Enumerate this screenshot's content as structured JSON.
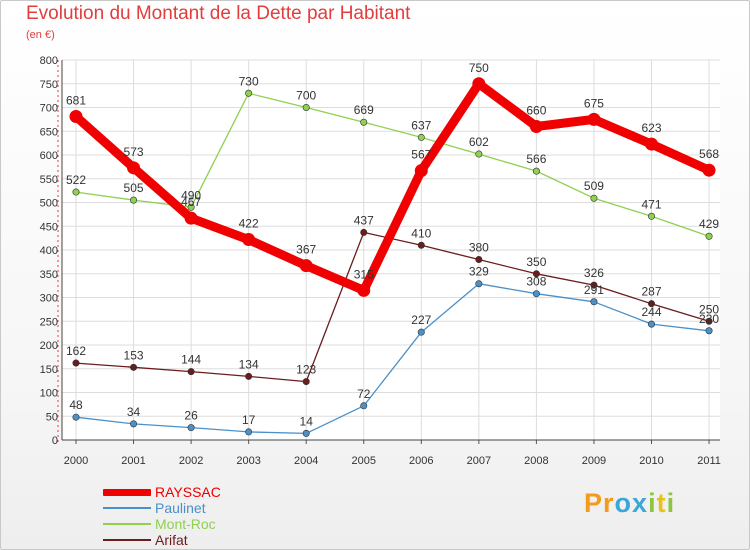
{
  "chart_data": {
    "type": "line",
    "title": "Evolution du Montant de la Dette par Habitant",
    "subtitle": "(en €)",
    "xlabel": "",
    "ylabel": "",
    "categories": [
      "2000",
      "2001",
      "2002",
      "2003",
      "2004",
      "2005",
      "2006",
      "2007",
      "2008",
      "2009",
      "2010",
      "2011"
    ],
    "ylim": [
      0,
      800
    ],
    "yticks": [
      0,
      50,
      100,
      150,
      200,
      250,
      300,
      350,
      400,
      450,
      500,
      550,
      600,
      650,
      700,
      750,
      800
    ],
    "grid": true,
    "legend_position": "bottom-left",
    "series": [
      {
        "name": "Arifat",
        "color": "#6b1d1d",
        "emphasis": false,
        "values": [
          162,
          153,
          144,
          134,
          123,
          437,
          410,
          380,
          350,
          326,
          287,
          250
        ],
        "labels": [
          "162",
          "153",
          "144",
          "134",
          "123",
          "437",
          "410",
          "380",
          "350",
          "326",
          "287",
          "250"
        ]
      },
      {
        "name": "Mont-Roc",
        "color": "#8fd050",
        "emphasis": false,
        "values": [
          522,
          505,
          490,
          730,
          700,
          669,
          637,
          602,
          566,
          509,
          471,
          429
        ],
        "labels": [
          "522",
          "505",
          "490",
          "730",
          "700",
          "669",
          "637",
          "602",
          "566",
          "509",
          "471",
          "429"
        ]
      },
      {
        "name": "Paulinet",
        "color": "#4a90c9",
        "emphasis": false,
        "values": [
          48,
          34,
          26,
          17,
          14,
          72,
          227,
          329,
          308,
          291,
          244,
          230
        ],
        "labels": [
          "48",
          "34",
          "26",
          "17",
          "14",
          "72",
          "227",
          "329",
          "308",
          "291",
          "244",
          "230"
        ]
      },
      {
        "name": "RAYSSAC",
        "color": "#f00000",
        "emphasis": true,
        "values": [
          681,
          573,
          467,
          422,
          367,
          315,
          567,
          750,
          660,
          675,
          623,
          568
        ],
        "labels": [
          "681",
          "573",
          "467",
          "422",
          "367",
          "315",
          "567",
          "750",
          "660",
          "675",
          "623",
          "568"
        ]
      }
    ]
  },
  "legend": {
    "items": [
      {
        "label": "RAYSSAC",
        "color": "#f00000"
      },
      {
        "label": "Paulinet",
        "color": "#4a90c9"
      },
      {
        "label": "Mont-Roc",
        "color": "#8fd050"
      },
      {
        "label": "Arifat",
        "color": "#6b1d1d"
      }
    ]
  },
  "logo": {
    "text": "Proxiti",
    "letters": [
      {
        "ch": "P",
        "color": "#f39a1f"
      },
      {
        "ch": "r",
        "color": "#f39a1f"
      },
      {
        "ch": "o",
        "color": "#3aa7d8"
      },
      {
        "ch": "x",
        "color": "#3aa7d8"
      },
      {
        "ch": "i",
        "color": "#8cc63f"
      },
      {
        "ch": "t",
        "color": "#e6c21a"
      },
      {
        "ch": "i",
        "color": "#8cc63f"
      }
    ]
  }
}
